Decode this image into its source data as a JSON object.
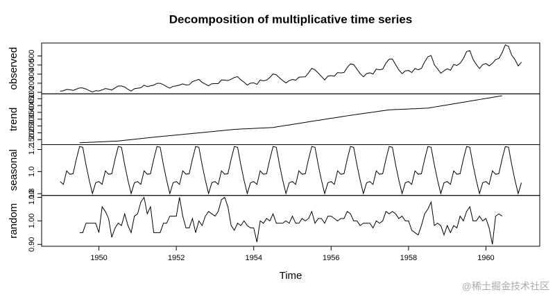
{
  "chart_data": {
    "type": "line",
    "title": "Decomposition of multiplicative time series",
    "xlabel": "Time",
    "watermark": "@稀土掘金技术社区",
    "color": "#000000",
    "xlim": [
      1948.52,
      1961.39
    ],
    "xticks": [
      1950,
      1952,
      1954,
      1956,
      1958,
      1960
    ],
    "x": [
      1949,
      1949.083,
      1949.167,
      1949.25,
      1949.333,
      1949.417,
      1949.5,
      1949.583,
      1949.667,
      1949.75,
      1949.833,
      1949.917,
      1950,
      1950.083,
      1950.167,
      1950.25,
      1950.333,
      1950.417,
      1950.5,
      1950.583,
      1950.667,
      1950.75,
      1950.833,
      1950.917,
      1951,
      1951.083,
      1951.167,
      1951.25,
      1951.333,
      1951.417,
      1951.5,
      1951.583,
      1951.667,
      1951.75,
      1951.833,
      1951.917,
      1952,
      1952.083,
      1952.167,
      1952.25,
      1952.333,
      1952.417,
      1952.5,
      1952.583,
      1952.667,
      1952.75,
      1952.833,
      1952.917,
      1953,
      1953.083,
      1953.167,
      1953.25,
      1953.333,
      1953.417,
      1953.5,
      1953.583,
      1953.667,
      1953.75,
      1953.833,
      1953.917,
      1954,
      1954.083,
      1954.167,
      1954.25,
      1954.333,
      1954.417,
      1954.5,
      1954.583,
      1954.667,
      1954.75,
      1954.833,
      1954.917,
      1955,
      1955.083,
      1955.167,
      1955.25,
      1955.333,
      1955.417,
      1955.5,
      1955.583,
      1955.667,
      1955.75,
      1955.833,
      1955.917,
      1956,
      1956.083,
      1956.167,
      1956.25,
      1956.333,
      1956.417,
      1956.5,
      1956.583,
      1956.667,
      1956.75,
      1956.833,
      1956.917,
      1957,
      1957.083,
      1957.167,
      1957.25,
      1957.333,
      1957.417,
      1957.5,
      1957.583,
      1957.667,
      1957.75,
      1957.833,
      1957.917,
      1958,
      1958.083,
      1958.167,
      1958.25,
      1958.333,
      1958.417,
      1958.5,
      1958.583,
      1958.667,
      1958.75,
      1958.833,
      1958.917,
      1959,
      1959.083,
      1959.167,
      1959.25,
      1959.333,
      1959.417,
      1959.5,
      1959.583,
      1959.667,
      1959.75,
      1959.833,
      1959.917,
      1960,
      1960.083,
      1960.167,
      1960.25,
      1960.333,
      1960.417,
      1960.5,
      1960.583,
      1960.667,
      1960.75,
      1960.833,
      1960.917
    ],
    "panels": [
      {
        "ylabel": "observed",
        "ylim": [
          83.3,
          642.7
        ],
        "yticks": [
          100,
          200,
          300,
          400,
          500
        ],
        "values": [
          112,
          118,
          132,
          129,
          121,
          135,
          148,
          148,
          136,
          119,
          104,
          118,
          115,
          126,
          141,
          135,
          125,
          149,
          170,
          170,
          158,
          133,
          114,
          140,
          145,
          150,
          178,
          163,
          172,
          178,
          199,
          199,
          184,
          162,
          146,
          166,
          171,
          180,
          193,
          181,
          183,
          218,
          230,
          242,
          209,
          191,
          172,
          194,
          196,
          196,
          236,
          235,
          229,
          243,
          264,
          272,
          237,
          211,
          180,
          201,
          204,
          188,
          235,
          227,
          234,
          264,
          302,
          293,
          259,
          229,
          203,
          229,
          242,
          233,
          267,
          269,
          270,
          315,
          364,
          347,
          312,
          274,
          237,
          278,
          284,
          277,
          317,
          313,
          318,
          374,
          413,
          405,
          355,
          306,
          271,
          306,
          315,
          301,
          356,
          348,
          355,
          422,
          465,
          467,
          404,
          347,
          305,
          336,
          340,
          318,
          362,
          348,
          363,
          435,
          491,
          505,
          404,
          359,
          310,
          337,
          360,
          342,
          406,
          396,
          420,
          472,
          548,
          559,
          463,
          407,
          362,
          405,
          417,
          391,
          419,
          461,
          472,
          535,
          622,
          606,
          508,
          461,
          390,
          432
        ]
      },
      {
        "ylabel": "trend",
        "ylim": [
          112.9,
          486.0
        ],
        "yticks": [
          150,
          200,
          250,
          300,
          350,
          400,
          450
        ],
        "values": [
          null,
          null,
          null,
          null,
          null,
          null,
          126.7,
          127.8,
          128.8,
          129.9,
          131.0,
          132.1,
          133.2,
          134.2,
          135.3,
          136.4,
          137.5,
          138.6,
          139.7,
          142.2,
          144.7,
          147.3,
          149.8,
          152.4,
          154.9,
          157.4,
          160.0,
          162.5,
          165.1,
          167.6,
          170.2,
          172.4,
          174.6,
          176.9,
          179.1,
          181.3,
          183.6,
          185.8,
          188.0,
          190.3,
          192.5,
          194.8,
          197.0,
          199.3,
          201.7,
          204.0,
          206.3,
          208.7,
          211.0,
          213.3,
          215.7,
          218.0,
          220.3,
          222.7,
          225.0,
          226.2,
          227.3,
          228.5,
          229.6,
          230.8,
          232.0,
          233.1,
          234.3,
          235.4,
          236.6,
          237.8,
          238.9,
          242.7,
          246.4,
          250.2,
          254.0,
          257.7,
          261.5,
          265.2,
          269.0,
          272.8,
          276.5,
          280.3,
          284.0,
          287.7,
          291.4,
          295.1,
          298.8,
          302.5,
          306.2,
          309.8,
          313.5,
          317.2,
          320.9,
          324.6,
          328.3,
          331.6,
          335.0,
          338.3,
          341.7,
          345.0,
          348.4,
          351.7,
          355.1,
          358.4,
          361.8,
          365.1,
          368.4,
          369.5,
          370.5,
          371.6,
          372.6,
          373.7,
          374.7,
          375.8,
          376.8,
          377.9,
          378.9,
          380.0,
          381.0,
          384.9,
          388.9,
          392.8,
          396.8,
          400.7,
          404.7,
          408.6,
          412.5,
          416.5,
          420.4,
          424.4,
          428.3,
          432.3,
          436.3,
          440.3,
          444.3,
          448.3,
          452.2,
          456.2,
          460.2,
          464.2,
          468.2,
          472.2,
          null,
          null,
          null,
          null,
          null,
          null
        ]
      },
      {
        "ylabel": "seasonal",
        "ylim": [
          0.784,
          1.244
        ],
        "yticks": [
          0.8,
          {
            "value": 1,
            "label": "1.0"
          },
          1.2
        ],
        "values": [
          0.91,
          0.884,
          1.007,
          0.976,
          0.981,
          1.113,
          1.227,
          1.22,
          1.061,
          0.922,
          0.801,
          0.899,
          0.91,
          0.884,
          1.007,
          0.976,
          0.981,
          1.113,
          1.227,
          1.22,
          1.061,
          0.922,
          0.801,
          0.899,
          0.91,
          0.884,
          1.007,
          0.976,
          0.981,
          1.113,
          1.227,
          1.22,
          1.061,
          0.922,
          0.801,
          0.899,
          0.91,
          0.884,
          1.007,
          0.976,
          0.981,
          1.113,
          1.227,
          1.22,
          1.061,
          0.922,
          0.801,
          0.899,
          0.91,
          0.884,
          1.007,
          0.976,
          0.981,
          1.113,
          1.227,
          1.22,
          1.061,
          0.922,
          0.801,
          0.899,
          0.91,
          0.884,
          1.007,
          0.976,
          0.981,
          1.113,
          1.227,
          1.22,
          1.061,
          0.922,
          0.801,
          0.899,
          0.91,
          0.884,
          1.007,
          0.976,
          0.981,
          1.113,
          1.227,
          1.22,
          1.061,
          0.922,
          0.801,
          0.899,
          0.91,
          0.884,
          1.007,
          0.976,
          0.981,
          1.113,
          1.227,
          1.22,
          1.061,
          0.922,
          0.801,
          0.899,
          0.91,
          0.884,
          1.007,
          0.976,
          0.981,
          1.113,
          1.227,
          1.22,
          1.061,
          0.922,
          0.801,
          0.899,
          0.91,
          0.884,
          1.007,
          0.976,
          0.981,
          1.113,
          1.227,
          1.22,
          1.061,
          0.922,
          0.801,
          0.899,
          0.91,
          0.884,
          1.007,
          0.976,
          0.981,
          1.113,
          1.227,
          1.22,
          1.061,
          0.922,
          0.801,
          0.899,
          0.91,
          0.884,
          1.007,
          0.976,
          0.981,
          1.113,
          1.227,
          1.22,
          1.061,
          0.922,
          0.801,
          0.899
        ]
      },
      {
        "ylabel": "random",
        "ylim": [
          0.892,
          1.108
        ],
        "yticks": [
          {
            "value": 0.9,
            "label": "0.90"
          },
          {
            "value": 1,
            "label": "1.00"
          },
          {
            "value": 1.1,
            "label": "1.10"
          }
        ],
        "values": [
          null,
          null,
          null,
          null,
          null,
          null,
          0.95,
          0.95,
          0.99,
          0.99,
          0.99,
          0.99,
          0.95,
          1.06,
          1.04,
          1.01,
          0.93,
          0.97,
          0.99,
          0.98,
          1.03,
          0.98,
          0.95,
          1.02,
          1.03,
          1.08,
          1.1,
          1.03,
          1.06,
          0.95,
          0.95,
          0.95,
          0.99,
          0.99,
          1.02,
          1.02,
          1.02,
          1.1,
          1.02,
          0.97,
          0.97,
          1.01,
          0.95,
          1.0,
          0.98,
          1.02,
          1.04,
          1.03,
          1.02,
          1.04,
          1.09,
          1.1,
          1.06,
          0.98,
          0.96,
          0.99,
          0.98,
          1.0,
          0.98,
          0.97,
          0.97,
          0.91,
          1.0,
          0.99,
          1.01,
          1.0,
          1.03,
          0.99,
          0.99,
          0.99,
          1.0,
          0.99,
          1.02,
          0.99,
          0.99,
          1.01,
          1.0,
          1.01,
          1.04,
          0.99,
          1.01,
          1.01,
          0.99,
          1.02,
          1.02,
          1.01,
          1.0,
          1.01,
          1.01,
          1.04,
          1.03,
          1.0,
          1.0,
          0.98,
          0.99,
          0.99,
          0.99,
          0.97,
          1.0,
          0.99,
          1.0,
          1.04,
          1.03,
          1.04,
          1.03,
          1.01,
          1.02,
          1.0,
          1.0,
          0.96,
          0.95,
          0.94,
          0.98,
          1.03,
          1.05,
          1.08,
          0.98,
          0.99,
          0.98,
          0.94,
          0.98,
          0.95,
          0.98,
          0.97,
          1.02,
          1.0,
          1.04,
          1.06,
          1.0,
          1.0,
          1.02,
          1.0,
          1.01,
          0.97,
          0.9,
          1.02,
          1.03,
          1.02,
          null,
          null,
          null,
          null,
          null,
          null
        ]
      }
    ]
  }
}
